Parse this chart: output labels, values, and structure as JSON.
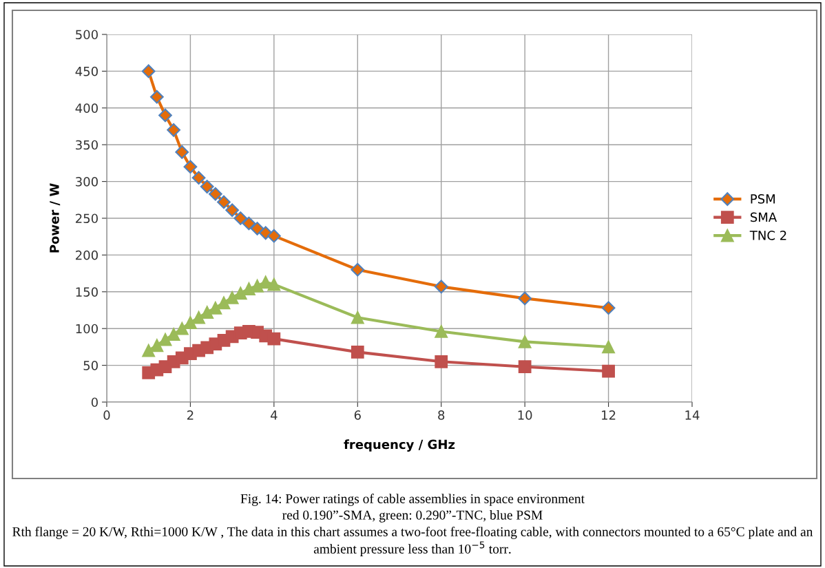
{
  "chart_data": {
    "type": "line",
    "xlabel": "frequency / GHz",
    "ylabel": "Power / W",
    "x": [
      1,
      1.2,
      1.4,
      1.6,
      1.8,
      2,
      2.2,
      2.4,
      2.6,
      2.8,
      3,
      3.2,
      3.4,
      3.6,
      3.8,
      4,
      6,
      8,
      10,
      12
    ],
    "series": [
      {
        "name": "PSM",
        "color": "#e46c0a",
        "marker": "diamond",
        "values": [
          450,
          415,
          390,
          370,
          340,
          320,
          305,
          293,
          283,
          272,
          261,
          250,
          243,
          236,
          230,
          226,
          180,
          157,
          141,
          128
        ]
      },
      {
        "name": "SMA",
        "color": "#c0504d",
        "marker": "square",
        "values": [
          40,
          44,
          48,
          55,
          60,
          66,
          70,
          74,
          79,
          84,
          89,
          94,
          96,
          95,
          90,
          86,
          68,
          55,
          48,
          42
        ]
      },
      {
        "name": "TNC 2",
        "color": "#9bbb59",
        "marker": "triangle",
        "values": [
          70,
          77,
          85,
          92,
          100,
          108,
          115,
          122,
          128,
          135,
          142,
          148,
          154,
          158,
          163,
          160,
          115,
          96,
          82,
          75
        ]
      }
    ],
    "xlim": [
      0,
      14
    ],
    "xticks": [
      0,
      2,
      4,
      6,
      8,
      10,
      12,
      14
    ],
    "ylim": [
      0,
      500
    ],
    "yticks": [
      0,
      50,
      100,
      150,
      200,
      250,
      300,
      350,
      400,
      450,
      500
    ],
    "grid": true,
    "legend": "right",
    "line_style": "solid",
    "annotations": [
      "Fig. 14: Power ratings of cable assemblies in space environment",
      "red 0.190”-SMA, green: 0.290”-TNC, blue PSM",
      "Rth flange = 20 K/W, Rthi=1000 K/W , The data in this chart assumes a two-foot free-floating cable, with connectors mounted to a 65°C plate and an ambient pressure less than 10$^{−5}$ torr."
    ]
  }
}
